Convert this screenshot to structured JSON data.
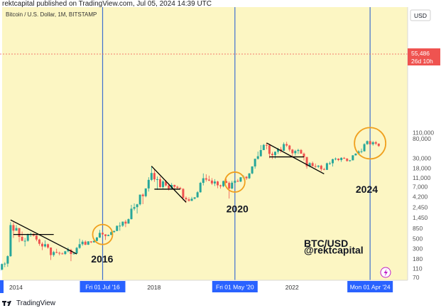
{
  "header": {
    "publisher_line": "rektcapital published on TradingView.com, Jul 05, 2024 14:39 UTC"
  },
  "footer": {
    "brand": "TradingView"
  },
  "colors": {
    "background": "#fcf6c3",
    "up": "#26a69a",
    "down": "#ef5350",
    "cycle_line": "#3f6fd0",
    "circle": "#f0a01e",
    "trendline": "#000000",
    "price_tag": "#ef5350",
    "axis_tag": "#2962ff"
  },
  "icons": {
    "footer_logo": "tradingview-logo-icon",
    "status": "lightning-icon"
  },
  "chart_data": {
    "type": "candlestick",
    "symbol_label": "Bitcoin / U.S. Dollar, 1M, BITSTAMP",
    "y_scale": "log",
    "y_currency": "USD",
    "y_ticks": [
      "110,000",
      "80,000",
      "55,486",
      "30,000",
      "18,000",
      "11,000",
      "7,000",
      "4,200",
      "2,450",
      "1,450",
      "850",
      "500",
      "300",
      "180",
      "110",
      "70"
    ],
    "y_tick_values": [
      110000,
      80000,
      55486,
      30000,
      18000,
      11000,
      7000,
      4200,
      2450,
      1450,
      850,
      500,
      300,
      180,
      110,
      70
    ],
    "x_labels": [
      "2014",
      "2018",
      "2022"
    ],
    "x_label_dates": [
      "2014-01",
      "2018-01",
      "2022-01"
    ],
    "last_price": {
      "value": "55,486",
      "countdown": "26d 10h",
      "num": 55486
    },
    "halving_markers": [
      {
        "label": "Fri 01 Jul '16",
        "date": "2016-07"
      },
      {
        "label": "Fri 01 May '20",
        "date": "2020-05"
      },
      {
        "label": "Mon 01 Apr '24",
        "date": "2024-04"
      }
    ],
    "annotations": [
      {
        "text": "2016",
        "x_date": "2016-03",
        "y": 150
      },
      {
        "text": "2020",
        "x_date": "2020-02",
        "y": 1900
      },
      {
        "text": "2024",
        "x_date": "2023-11",
        "y": 5200
      },
      {
        "text": "BTC/USD",
        "x_date": "2022-05",
        "y": 330
      },
      {
        "text": "@rektcapital",
        "x_date": "2022-05",
        "y": 235
      }
    ],
    "circles": [
      {
        "x_date": "2016-07",
        "y": 620
      },
      {
        "x_date": "2020-05",
        "y": 8900
      },
      {
        "x_date": "2024-04",
        "y": 64000
      }
    ],
    "trendlines": [
      {
        "from": [
          "2013-11",
          1300
        ],
        "to": [
          "2015-10",
          230
        ]
      },
      {
        "from": [
          "2017-12",
          20000
        ],
        "to": [
          "2018-12",
          3200
        ]
      },
      {
        "from": [
          "2021-04",
          65000
        ],
        "to": [
          "2022-12",
          13500
        ]
      }
    ],
    "support_lines": [
      {
        "from": [
          "2013-12",
          620
        ],
        "to": [
          "2015-02",
          620
        ]
      },
      {
        "from": [
          "2018-01",
          6200
        ],
        "to": [
          "2018-10",
          6200
        ]
      },
      {
        "from": [
          "2021-05",
          32000
        ],
        "to": [
          "2022-05",
          32000
        ]
      }
    ],
    "candles": [
      [
        "2013-07",
        98,
        106,
        88,
        104
      ],
      [
        "2013-08",
        104,
        142,
        100,
        138
      ],
      [
        "2013-09",
        138,
        152,
        118,
        141
      ],
      [
        "2013-10",
        141,
        215,
        120,
        206
      ],
      [
        "2013-11",
        206,
        1163,
        200,
        1000
      ],
      [
        "2013-12",
        1000,
        1150,
        520,
        754
      ],
      [
        "2014-01",
        754,
        1000,
        750,
        860
      ],
      [
        "2014-02",
        860,
        860,
        420,
        550
      ],
      [
        "2014-03",
        550,
        720,
        440,
        450
      ],
      [
        "2014-04",
        450,
        520,
        340,
        450
      ],
      [
        "2014-05",
        450,
        650,
        430,
        630
      ],
      [
        "2014-06",
        630,
        680,
        550,
        640
      ],
      [
        "2014-07",
        640,
        660,
        560,
        585
      ],
      [
        "2014-08",
        585,
        600,
        440,
        480
      ],
      [
        "2014-09",
        480,
        500,
        350,
        387
      ],
      [
        "2014-10",
        387,
        420,
        280,
        338
      ],
      [
        "2014-11",
        338,
        460,
        320,
        378
      ],
      [
        "2014-12",
        378,
        390,
        300,
        320
      ],
      [
        "2015-01",
        320,
        320,
        170,
        218
      ],
      [
        "2015-02",
        218,
        270,
        200,
        254
      ],
      [
        "2015-03",
        254,
        300,
        240,
        244
      ],
      [
        "2015-04",
        244,
        260,
        215,
        236
      ],
      [
        "2015-05",
        236,
        250,
        225,
        230
      ],
      [
        "2015-06",
        230,
        270,
        220,
        264
      ],
      [
        "2015-07",
        264,
        320,
        250,
        284
      ],
      [
        "2015-08",
        284,
        300,
        160,
        230
      ],
      [
        "2015-09",
        230,
        250,
        225,
        236
      ],
      [
        "2015-10",
        236,
        330,
        235,
        314
      ],
      [
        "2015-11",
        314,
        500,
        300,
        378
      ],
      [
        "2015-12",
        378,
        470,
        350,
        430
      ],
      [
        "2016-01",
        430,
        460,
        360,
        368
      ],
      [
        "2016-02",
        368,
        440,
        365,
        437
      ],
      [
        "2016-03",
        437,
        440,
        400,
        416
      ],
      [
        "2016-04",
        416,
        470,
        410,
        448
      ],
      [
        "2016-05",
        448,
        550,
        440,
        531
      ],
      [
        "2016-06",
        531,
        780,
        520,
        673
      ],
      [
        "2016-07",
        673,
        700,
        600,
        624
      ],
      [
        "2016-08",
        624,
        630,
        470,
        573
      ],
      [
        "2016-09",
        573,
        620,
        570,
        608
      ],
      [
        "2016-10",
        608,
        720,
        600,
        700
      ],
      [
        "2016-11",
        700,
        760,
        680,
        740
      ],
      [
        "2016-12",
        740,
        980,
        740,
        963
      ],
      [
        "2017-01",
        963,
        1150,
        750,
        970
      ],
      [
        "2017-02",
        970,
        1200,
        910,
        1190
      ],
      [
        "2017-03",
        1190,
        1300,
        900,
        1080
      ],
      [
        "2017-04",
        1080,
        1400,
        1070,
        1350
      ],
      [
        "2017-05",
        1350,
        2800,
        1330,
        2300
      ],
      [
        "2017-06",
        2300,
        3000,
        2100,
        2490
      ],
      [
        "2017-07",
        2490,
        2950,
        1800,
        2870
      ],
      [
        "2017-08",
        2870,
        4700,
        2700,
        4700
      ],
      [
        "2017-09",
        4700,
        5000,
        2900,
        4340
      ],
      [
        "2017-10",
        4340,
        6400,
        4100,
        6450
      ],
      [
        "2017-11",
        6450,
        11400,
        5500,
        9950
      ],
      [
        "2017-12",
        9950,
        19700,
        9400,
        14100
      ],
      [
        "2018-01",
        14100,
        17200,
        9000,
        10200
      ],
      [
        "2018-02",
        10200,
        11800,
        6000,
        10300
      ],
      [
        "2018-03",
        10300,
        11700,
        6600,
        6900
      ],
      [
        "2018-04",
        6900,
        9800,
        6400,
        9200
      ],
      [
        "2018-05",
        9200,
        9900,
        7100,
        7500
      ],
      [
        "2018-06",
        7500,
        7800,
        5800,
        6400
      ],
      [
        "2018-07",
        6400,
        8500,
        6100,
        7700
      ],
      [
        "2018-08",
        7700,
        7800,
        5900,
        7000
      ],
      [
        "2018-09",
        7000,
        7400,
        6100,
        6600
      ],
      [
        "2018-10",
        6600,
        7000,
        6200,
        6300
      ],
      [
        "2018-11",
        6300,
        6500,
        3500,
        4000
      ],
      [
        "2018-12",
        4000,
        4300,
        3100,
        3700
      ],
      [
        "2019-01",
        3700,
        4100,
        3300,
        3430
      ],
      [
        "2019-02",
        3430,
        4200,
        3390,
        3820
      ],
      [
        "2019-03",
        3820,
        4100,
        3700,
        4100
      ],
      [
        "2019-04",
        4100,
        5600,
        4000,
        5300
      ],
      [
        "2019-05",
        5300,
        9000,
        5200,
        8550
      ],
      [
        "2019-06",
        8550,
        13800,
        7500,
        10800
      ],
      [
        "2019-07",
        10800,
        13200,
        9100,
        10080
      ],
      [
        "2019-08",
        10080,
        12300,
        9300,
        9600
      ],
      [
        "2019-09",
        9600,
        10900,
        7700,
        8290
      ],
      [
        "2019-10",
        8290,
        10300,
        7300,
        9150
      ],
      [
        "2019-11",
        9150,
        9500,
        6500,
        7550
      ],
      [
        "2019-12",
        7550,
        7800,
        6400,
        7200
      ],
      [
        "2020-01",
        7200,
        9600,
        6850,
        9350
      ],
      [
        "2020-02",
        9350,
        10500,
        8400,
        8540
      ],
      [
        "2020-03",
        8540,
        9200,
        3850,
        6420
      ],
      [
        "2020-04",
        6420,
        9500,
        6150,
        8630
      ],
      [
        "2020-05",
        8630,
        10000,
        8100,
        9450
      ],
      [
        "2020-06",
        9450,
        10400,
        8900,
        9140
      ],
      [
        "2020-07",
        9140,
        11400,
        8900,
        11350
      ],
      [
        "2020-08",
        11350,
        12500,
        10500,
        11650
      ],
      [
        "2020-09",
        11650,
        12100,
        9900,
        10780
      ],
      [
        "2020-10",
        10780,
        14100,
        10400,
        13800
      ],
      [
        "2020-11",
        13800,
        19900,
        13200,
        19700
      ],
      [
        "2020-12",
        19700,
        29300,
        17600,
        28990
      ],
      [
        "2021-01",
        28990,
        41900,
        28000,
        33100
      ],
      [
        "2021-02",
        33100,
        58300,
        32300,
        45200
      ],
      [
        "2021-03",
        45200,
        61700,
        45000,
        58800
      ],
      [
        "2021-04",
        58800,
        64800,
        47100,
        57700
      ],
      [
        "2021-05",
        57700,
        59500,
        30000,
        37300
      ],
      [
        "2021-06",
        37300,
        41300,
        28800,
        35000
      ],
      [
        "2021-07",
        35000,
        42300,
        29300,
        41500
      ],
      [
        "2021-08",
        41500,
        50500,
        37400,
        47100
      ],
      [
        "2021-09",
        47100,
        52900,
        39600,
        43800
      ],
      [
        "2021-10",
        43800,
        66900,
        43300,
        61300
      ],
      [
        "2021-11",
        61300,
        69000,
        53300,
        57000
      ],
      [
        "2021-12",
        57000,
        59000,
        42000,
        46300
      ],
      [
        "2022-01",
        46300,
        47900,
        32900,
        38500
      ],
      [
        "2022-02",
        38500,
        45800,
        34300,
        43200
      ],
      [
        "2022-03",
        43200,
        48100,
        37200,
        45500
      ],
      [
        "2022-04",
        45500,
        47400,
        37700,
        37700
      ],
      [
        "2022-05",
        37700,
        40000,
        26700,
        31800
      ],
      [
        "2022-06",
        31800,
        31900,
        17600,
        19900
      ],
      [
        "2022-07",
        19900,
        24600,
        18800,
        23300
      ],
      [
        "2022-08",
        23300,
        25200,
        19600,
        20050
      ],
      [
        "2022-09",
        20050,
        22800,
        18200,
        19420
      ],
      [
        "2022-10",
        19420,
        21000,
        18200,
        20490
      ],
      [
        "2022-11",
        20490,
        21400,
        15500,
        17170
      ],
      [
        "2022-12",
        17170,
        18400,
        16300,
        16540
      ],
      [
        "2023-01",
        16540,
        23900,
        16500,
        23130
      ],
      [
        "2023-02",
        23130,
        25200,
        21400,
        23150
      ],
      [
        "2023-03",
        23150,
        29200,
        19600,
        28480
      ],
      [
        "2023-04",
        28480,
        31000,
        26900,
        29240
      ],
      [
        "2023-05",
        29240,
        29800,
        25800,
        27210
      ],
      [
        "2023-06",
        27210,
        31400,
        24800,
        30470
      ],
      [
        "2023-07",
        30470,
        31800,
        28900,
        29230
      ],
      [
        "2023-08",
        29230,
        30200,
        25200,
        25940
      ],
      [
        "2023-09",
        25940,
        27500,
        24900,
        26960
      ],
      [
        "2023-10",
        26960,
        35000,
        26600,
        34640
      ],
      [
        "2023-11",
        34640,
        38400,
        34100,
        37720
      ],
      [
        "2023-12",
        37720,
        44700,
        37600,
        42280
      ],
      [
        "2024-01",
        42280,
        48900,
        38500,
        42580
      ],
      [
        "2024-02",
        42580,
        63900,
        41900,
        61170
      ],
      [
        "2024-03",
        61170,
        73800,
        59000,
        71300
      ],
      [
        "2024-04",
        71300,
        72700,
        59600,
        60670
      ],
      [
        "2024-05",
        60670,
        71900,
        56600,
        67500
      ],
      [
        "2024-06",
        67500,
        71900,
        58400,
        62700
      ],
      [
        "2024-07",
        62700,
        63800,
        53500,
        55486
      ]
    ]
  }
}
